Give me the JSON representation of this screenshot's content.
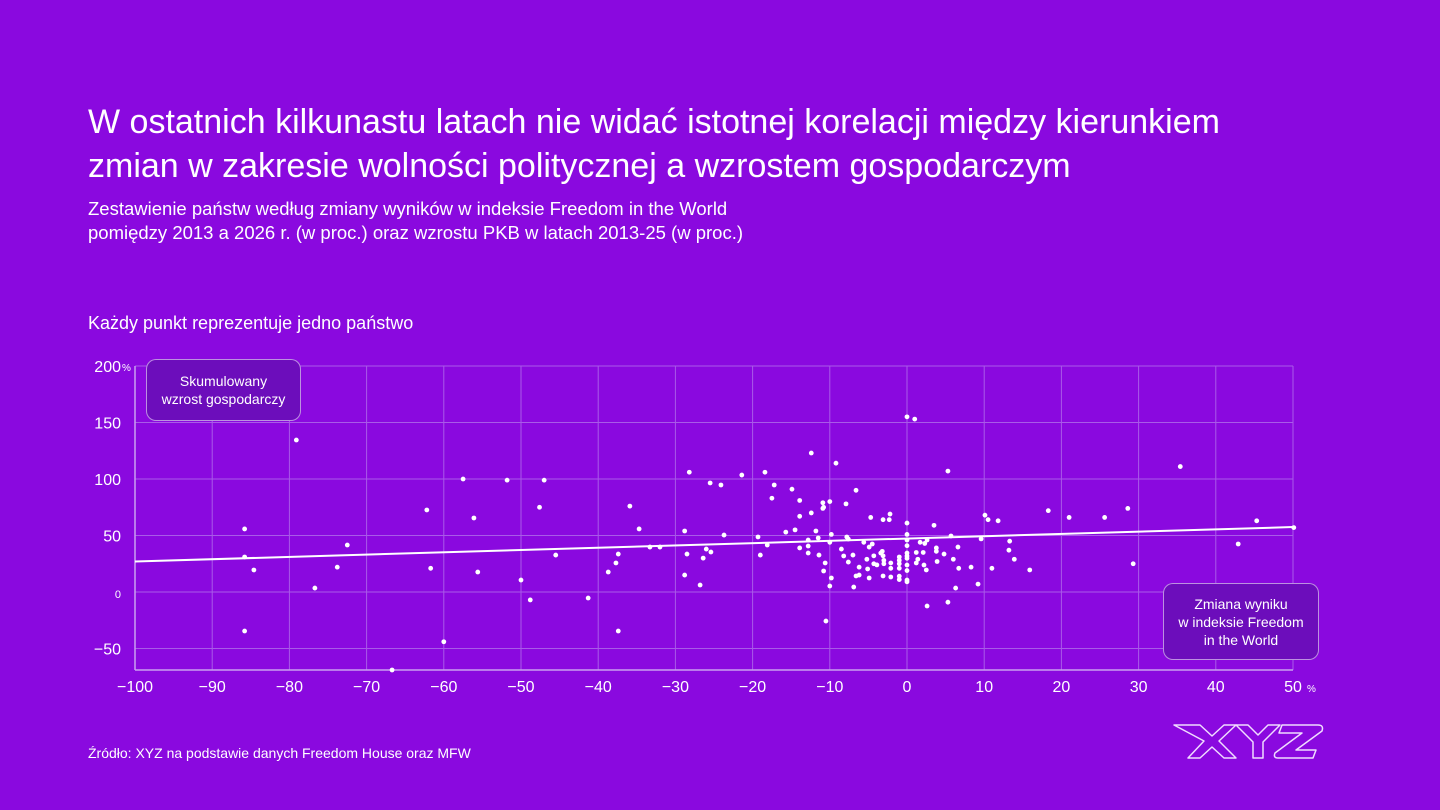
{
  "header": {
    "title_line1": "W ostatnich kilkunastu latach nie widać istotnej korelacji między kierunkiem",
    "title_line2": "zmian w zakresie wolności politycznej a wzrostem gospodarczym",
    "subtitle_line1": "Zestawienie państw według  zmiany wyników w indeksie Freedom in the World",
    "subtitle_line2": "pomiędzy 2013 a 2026 r. (w proc.) oraz wzrostu PKB w latach 2013-25 (w proc.)",
    "note": "Każdy punkt reprezentuje jedno państwo"
  },
  "footer": {
    "source": "Źródło:  XYZ na podstawie danych Freedom House oraz MFW",
    "logo_text": "XYZ"
  },
  "colors": {
    "background": "#8a09df",
    "box": "#6c0dbb",
    "points": "#ffffff",
    "grid": "#a95ae8"
  },
  "chart_data": {
    "type": "scatter",
    "title": "Każdy punkt reprezentuje jedno państwo",
    "ylabel_line1": "Skumulowany",
    "ylabel_line2": "wzrost gospodarczy",
    "xlabel_line1": "Zmiana wyniku",
    "xlabel_line2": "w indeksie Freedom",
    "xlabel_line3": "in the World",
    "xlim": [
      -100,
      50
    ],
    "ylim": [
      -69,
      200
    ],
    "grid": true,
    "x_ticks": [
      -100,
      -90,
      -80,
      -70,
      -60,
      -50,
      -40,
      -30,
      -20,
      -10,
      0,
      10,
      20,
      30,
      40,
      50
    ],
    "x_tick_labels": [
      "−100",
      "−90",
      "−80",
      "−70",
      "−60",
      "−50",
      "−40",
      "−30",
      "−20",
      "−10",
      "0",
      "10",
      "20",
      "30",
      "40",
      "50"
    ],
    "x_unit": "%",
    "y_ticks": [
      200,
      150,
      100,
      50,
      0,
      -50
    ],
    "y_tick_labels": [
      "200",
      "150",
      "100",
      "50",
      "0",
      "−50"
    ],
    "y_unit": "%",
    "trendline": {
      "x": [
        -100,
        50
      ],
      "y": [
        27,
        57.5
      ]
    },
    "points": [
      [
        -85.8,
        55.8
      ],
      [
        -85.8,
        31
      ],
      [
        -84.6,
        19.5
      ],
      [
        -85.8,
        -34.5
      ],
      [
        -79.1,
        134.5
      ],
      [
        -76.7,
        3.5
      ],
      [
        -73.8,
        22
      ],
      [
        -72.5,
        41.6
      ],
      [
        -62.2,
        72.6
      ],
      [
        -61.7,
        21
      ],
      [
        -60,
        -44
      ],
      [
        -66.7,
        -69
      ],
      [
        -57.5,
        100
      ],
      [
        -56.1,
        65.5
      ],
      [
        -55.6,
        17.7
      ],
      [
        -51.8,
        99
      ],
      [
        -50,
        10.6
      ],
      [
        -48.8,
        -7
      ],
      [
        -47.6,
        75
      ],
      [
        -47,
        99
      ],
      [
        -45.5,
        32.7
      ],
      [
        -41.3,
        -5.3
      ],
      [
        -38.7,
        17.7
      ],
      [
        -37.7,
        25.7
      ],
      [
        -37.4,
        33.6
      ],
      [
        -37.4,
        -34.5
      ],
      [
        -35.9,
        76
      ],
      [
        -34.7,
        55.8
      ],
      [
        -33.3,
        39.8
      ],
      [
        -32,
        39.8
      ],
      [
        -28.2,
        106
      ],
      [
        -28.8,
        54
      ],
      [
        -28.5,
        33.6
      ],
      [
        -28.8,
        15
      ],
      [
        -26.8,
        6.2
      ],
      [
        -25.5,
        96.5
      ],
      [
        -24.1,
        94.7
      ],
      [
        -26,
        38
      ],
      [
        -25.4,
        35.4
      ],
      [
        -26.4,
        30
      ],
      [
        -23.7,
        50.4
      ],
      [
        -21.4,
        103.5
      ],
      [
        -18.4,
        106
      ],
      [
        -17.2,
        94.7
      ],
      [
        -17.5,
        83
      ],
      [
        -14.9,
        91
      ],
      [
        -13.9,
        81
      ],
      [
        -13.9,
        67
      ],
      [
        -12.4,
        123
      ],
      [
        -12.4,
        70
      ],
      [
        -10.9,
        79
      ],
      [
        -10.8,
        75
      ],
      [
        -10.9,
        74
      ],
      [
        -10,
        80
      ],
      [
        -9.2,
        114
      ],
      [
        -7.9,
        78
      ],
      [
        -6.6,
        90
      ],
      [
        -19.3,
        48.7
      ],
      [
        -19,
        32.7
      ],
      [
        -18.1,
        41.6
      ],
      [
        -15.7,
        53
      ],
      [
        -14.5,
        55
      ],
      [
        -13.9,
        39
      ],
      [
        -12.8,
        46
      ],
      [
        -12.8,
        40.7
      ],
      [
        -12.8,
        34.5
      ],
      [
        -11.8,
        54
      ],
      [
        -11.5,
        47.8
      ],
      [
        -11.4,
        32.7
      ],
      [
        -10.6,
        25.7
      ],
      [
        -10.8,
        18.6
      ],
      [
        -10,
        5.3
      ],
      [
        -9.8,
        12.4
      ],
      [
        -10.5,
        -25.7
      ],
      [
        -9.8,
        51
      ],
      [
        -10,
        44
      ],
      [
        -8.5,
        38
      ],
      [
        -8.2,
        31.9
      ],
      [
        -7.8,
        48.7
      ],
      [
        -7.6,
        46.9
      ],
      [
        -7.6,
        26.5
      ],
      [
        -7,
        32.7
      ],
      [
        -6.9,
        4.4
      ],
      [
        -6.6,
        14.2
      ],
      [
        -6.2,
        15
      ],
      [
        -6.2,
        22
      ],
      [
        -5.6,
        44
      ],
      [
        -5.2,
        29
      ],
      [
        -5.1,
        20.4
      ],
      [
        -4.9,
        12.4
      ],
      [
        -4.9,
        39.8
      ],
      [
        -4.5,
        42.5
      ],
      [
        -4.7,
        66
      ],
      [
        -4.3,
        32
      ],
      [
        -4.3,
        25
      ],
      [
        -3.9,
        24
      ],
      [
        -3.4,
        34.5
      ],
      [
        -3.2,
        36
      ],
      [
        -3.1,
        64
      ],
      [
        -3.1,
        32
      ],
      [
        -3,
        28
      ],
      [
        -3,
        25
      ],
      [
        -3.1,
        14.2
      ],
      [
        -2.3,
        64
      ],
      [
        -2.2,
        69
      ],
      [
        -2.1,
        25.7
      ],
      [
        -2.1,
        21
      ],
      [
        -2.1,
        13.3
      ],
      [
        -1,
        31
      ],
      [
        -1,
        28
      ],
      [
        -1,
        25
      ],
      [
        -1,
        21
      ],
      [
        -1,
        14
      ],
      [
        -1,
        11
      ],
      [
        0,
        61
      ],
      [
        0,
        51
      ],
      [
        0,
        46
      ],
      [
        0,
        41
      ],
      [
        0,
        34.5
      ],
      [
        0,
        31.9
      ],
      [
        0,
        29.8
      ],
      [
        0,
        23.9
      ],
      [
        0,
        19
      ],
      [
        0,
        10.6
      ],
      [
        0,
        9
      ],
      [
        0,
        155
      ],
      [
        1,
        153
      ],
      [
        1.7,
        44
      ],
      [
        2.3,
        43
      ],
      [
        2.6,
        46
      ],
      [
        1.2,
        35
      ],
      [
        2.1,
        35
      ],
      [
        1.4,
        29
      ],
      [
        1.2,
        25.7
      ],
      [
        2.2,
        23.9
      ],
      [
        2.5,
        19.5
      ],
      [
        2.6,
        -12.4
      ],
      [
        3.5,
        59
      ],
      [
        3.8,
        39
      ],
      [
        3.8,
        36
      ],
      [
        3.9,
        27
      ],
      [
        4.8,
        33.6
      ],
      [
        5.3,
        107
      ],
      [
        5.3,
        -9
      ],
      [
        5.7,
        49.6
      ],
      [
        6,
        29
      ],
      [
        6.3,
        3.5
      ],
      [
        6.6,
        39.8
      ],
      [
        6.7,
        21
      ],
      [
        10.1,
        68
      ],
      [
        10.5,
        64
      ],
      [
        9.6,
        47
      ],
      [
        11.8,
        63
      ],
      [
        8.3,
        22
      ],
      [
        9.2,
        7
      ],
      [
        11,
        21
      ],
      [
        13.3,
        45
      ],
      [
        13.2,
        37
      ],
      [
        13.9,
        29
      ],
      [
        15.9,
        19.5
      ],
      [
        18.3,
        72
      ],
      [
        21,
        66
      ],
      [
        25.6,
        66
      ],
      [
        28.6,
        74
      ],
      [
        29.3,
        25
      ],
      [
        35.4,
        111
      ],
      [
        42.9,
        42.5
      ],
      [
        45.3,
        63
      ],
      [
        50.1,
        57
      ]
    ]
  }
}
